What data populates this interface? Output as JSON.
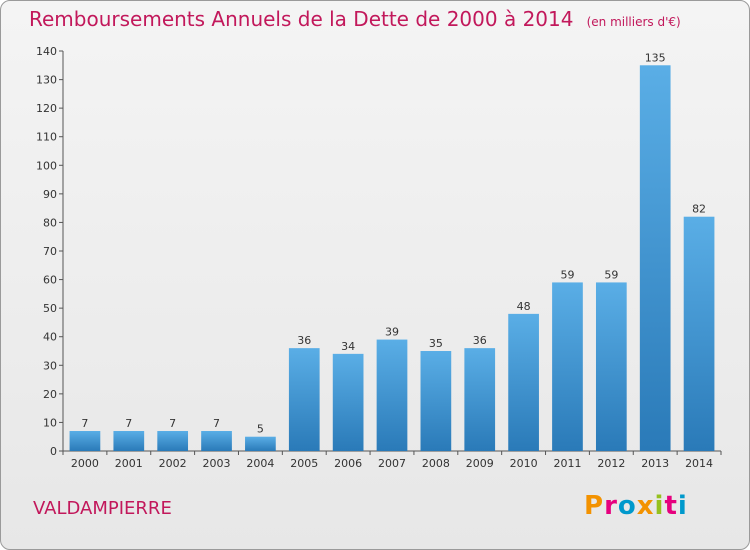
{
  "header": {
    "title": "Remboursements Annuels de la Dette de 2000 à 2014",
    "unit": "(en milliers d'€)"
  },
  "footer": {
    "commune": "VALDAMPIERRE",
    "logo": "Proxiti",
    "logo_colors": [
      "#f39200",
      "#e6007e",
      "#0099cc",
      "#f39200",
      "#95c11f",
      "#e6007e",
      "#0099cc"
    ]
  },
  "chart_data": {
    "type": "bar",
    "title": "Remboursements Annuels de la Dette de 2000 à 2014",
    "subtitle": "(en milliers d'€)",
    "categories": [
      "2000",
      "2001",
      "2002",
      "2003",
      "2004",
      "2005",
      "2006",
      "2007",
      "2008",
      "2009",
      "2010",
      "2011",
      "2012",
      "2013",
      "2014"
    ],
    "values": [
      7,
      7,
      7,
      7,
      5,
      36,
      34,
      39,
      35,
      36,
      48,
      59,
      59,
      135,
      82
    ],
    "ylim": [
      0,
      140
    ],
    "yticks": [
      0,
      10,
      20,
      30,
      40,
      50,
      60,
      70,
      80,
      90,
      100,
      110,
      120,
      130,
      140
    ],
    "grid": false,
    "colors": {
      "bar_top": "#5aaee6",
      "bar_bottom": "#2a7ab8",
      "axis": "#555555"
    }
  }
}
